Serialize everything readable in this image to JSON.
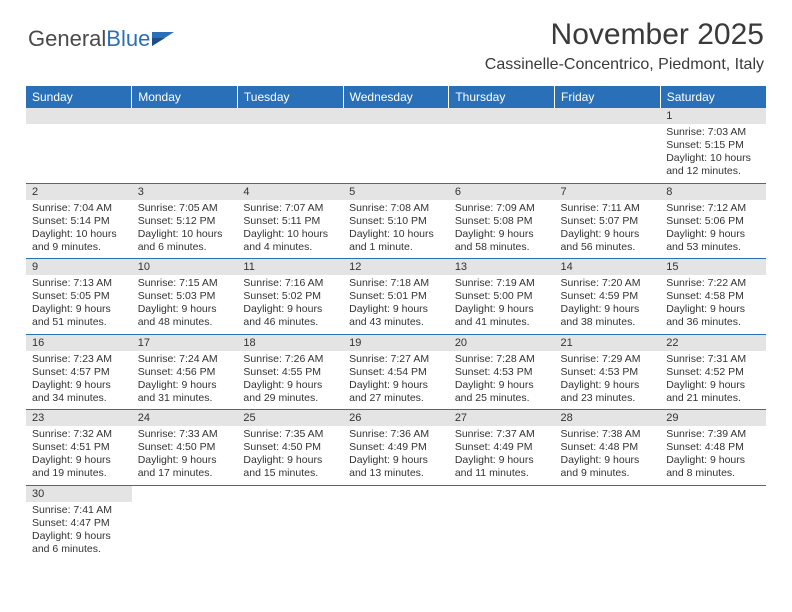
{
  "logo": {
    "text1": "General",
    "text2": "Blue"
  },
  "title": "November 2025",
  "location": "Cassinelle-Concentrico, Piedmont, Italy",
  "weekdays": [
    "Sunday",
    "Monday",
    "Tuesday",
    "Wednesday",
    "Thursday",
    "Friday",
    "Saturday"
  ],
  "colors": {
    "header_bg": "#2a70b8",
    "daynum_bg": "#e4e4e4",
    "border": "#2a70b8"
  },
  "weeks": [
    {
      "days": [
        {
          "n": "",
          "sr": "",
          "ss": "",
          "dl": ""
        },
        {
          "n": "",
          "sr": "",
          "ss": "",
          "dl": ""
        },
        {
          "n": "",
          "sr": "",
          "ss": "",
          "dl": ""
        },
        {
          "n": "",
          "sr": "",
          "ss": "",
          "dl": ""
        },
        {
          "n": "",
          "sr": "",
          "ss": "",
          "dl": ""
        },
        {
          "n": "",
          "sr": "",
          "ss": "",
          "dl": ""
        },
        {
          "n": "1",
          "sr": "Sunrise: 7:03 AM",
          "ss": "Sunset: 5:15 PM",
          "dl": "Daylight: 10 hours and 12 minutes."
        }
      ]
    },
    {
      "days": [
        {
          "n": "2",
          "sr": "Sunrise: 7:04 AM",
          "ss": "Sunset: 5:14 PM",
          "dl": "Daylight: 10 hours and 9 minutes."
        },
        {
          "n": "3",
          "sr": "Sunrise: 7:05 AM",
          "ss": "Sunset: 5:12 PM",
          "dl": "Daylight: 10 hours and 6 minutes."
        },
        {
          "n": "4",
          "sr": "Sunrise: 7:07 AM",
          "ss": "Sunset: 5:11 PM",
          "dl": "Daylight: 10 hours and 4 minutes."
        },
        {
          "n": "5",
          "sr": "Sunrise: 7:08 AM",
          "ss": "Sunset: 5:10 PM",
          "dl": "Daylight: 10 hours and 1 minute."
        },
        {
          "n": "6",
          "sr": "Sunrise: 7:09 AM",
          "ss": "Sunset: 5:08 PM",
          "dl": "Daylight: 9 hours and 58 minutes."
        },
        {
          "n": "7",
          "sr": "Sunrise: 7:11 AM",
          "ss": "Sunset: 5:07 PM",
          "dl": "Daylight: 9 hours and 56 minutes."
        },
        {
          "n": "8",
          "sr": "Sunrise: 7:12 AM",
          "ss": "Sunset: 5:06 PM",
          "dl": "Daylight: 9 hours and 53 minutes."
        }
      ]
    },
    {
      "days": [
        {
          "n": "9",
          "sr": "Sunrise: 7:13 AM",
          "ss": "Sunset: 5:05 PM",
          "dl": "Daylight: 9 hours and 51 minutes."
        },
        {
          "n": "10",
          "sr": "Sunrise: 7:15 AM",
          "ss": "Sunset: 5:03 PM",
          "dl": "Daylight: 9 hours and 48 minutes."
        },
        {
          "n": "11",
          "sr": "Sunrise: 7:16 AM",
          "ss": "Sunset: 5:02 PM",
          "dl": "Daylight: 9 hours and 46 minutes."
        },
        {
          "n": "12",
          "sr": "Sunrise: 7:18 AM",
          "ss": "Sunset: 5:01 PM",
          "dl": "Daylight: 9 hours and 43 minutes."
        },
        {
          "n": "13",
          "sr": "Sunrise: 7:19 AM",
          "ss": "Sunset: 5:00 PM",
          "dl": "Daylight: 9 hours and 41 minutes."
        },
        {
          "n": "14",
          "sr": "Sunrise: 7:20 AM",
          "ss": "Sunset: 4:59 PM",
          "dl": "Daylight: 9 hours and 38 minutes."
        },
        {
          "n": "15",
          "sr": "Sunrise: 7:22 AM",
          "ss": "Sunset: 4:58 PM",
          "dl": "Daylight: 9 hours and 36 minutes."
        }
      ]
    },
    {
      "days": [
        {
          "n": "16",
          "sr": "Sunrise: 7:23 AM",
          "ss": "Sunset: 4:57 PM",
          "dl": "Daylight: 9 hours and 34 minutes."
        },
        {
          "n": "17",
          "sr": "Sunrise: 7:24 AM",
          "ss": "Sunset: 4:56 PM",
          "dl": "Daylight: 9 hours and 31 minutes."
        },
        {
          "n": "18",
          "sr": "Sunrise: 7:26 AM",
          "ss": "Sunset: 4:55 PM",
          "dl": "Daylight: 9 hours and 29 minutes."
        },
        {
          "n": "19",
          "sr": "Sunrise: 7:27 AM",
          "ss": "Sunset: 4:54 PM",
          "dl": "Daylight: 9 hours and 27 minutes."
        },
        {
          "n": "20",
          "sr": "Sunrise: 7:28 AM",
          "ss": "Sunset: 4:53 PM",
          "dl": "Daylight: 9 hours and 25 minutes."
        },
        {
          "n": "21",
          "sr": "Sunrise: 7:29 AM",
          "ss": "Sunset: 4:53 PM",
          "dl": "Daylight: 9 hours and 23 minutes."
        },
        {
          "n": "22",
          "sr": "Sunrise: 7:31 AM",
          "ss": "Sunset: 4:52 PM",
          "dl": "Daylight: 9 hours and 21 minutes."
        }
      ]
    },
    {
      "days": [
        {
          "n": "23",
          "sr": "Sunrise: 7:32 AM",
          "ss": "Sunset: 4:51 PM",
          "dl": "Daylight: 9 hours and 19 minutes."
        },
        {
          "n": "24",
          "sr": "Sunrise: 7:33 AM",
          "ss": "Sunset: 4:50 PM",
          "dl": "Daylight: 9 hours and 17 minutes."
        },
        {
          "n": "25",
          "sr": "Sunrise: 7:35 AM",
          "ss": "Sunset: 4:50 PM",
          "dl": "Daylight: 9 hours and 15 minutes."
        },
        {
          "n": "26",
          "sr": "Sunrise: 7:36 AM",
          "ss": "Sunset: 4:49 PM",
          "dl": "Daylight: 9 hours and 13 minutes."
        },
        {
          "n": "27",
          "sr": "Sunrise: 7:37 AM",
          "ss": "Sunset: 4:49 PM",
          "dl": "Daylight: 9 hours and 11 minutes."
        },
        {
          "n": "28",
          "sr": "Sunrise: 7:38 AM",
          "ss": "Sunset: 4:48 PM",
          "dl": "Daylight: 9 hours and 9 minutes."
        },
        {
          "n": "29",
          "sr": "Sunrise: 7:39 AM",
          "ss": "Sunset: 4:48 PM",
          "dl": "Daylight: 9 hours and 8 minutes."
        }
      ]
    },
    {
      "days": [
        {
          "n": "30",
          "sr": "Sunrise: 7:41 AM",
          "ss": "Sunset: 4:47 PM",
          "dl": "Daylight: 9 hours and 6 minutes."
        },
        {
          "n": "",
          "sr": "",
          "ss": "",
          "dl": ""
        },
        {
          "n": "",
          "sr": "",
          "ss": "",
          "dl": ""
        },
        {
          "n": "",
          "sr": "",
          "ss": "",
          "dl": ""
        },
        {
          "n": "",
          "sr": "",
          "ss": "",
          "dl": ""
        },
        {
          "n": "",
          "sr": "",
          "ss": "",
          "dl": ""
        },
        {
          "n": "",
          "sr": "",
          "ss": "",
          "dl": ""
        }
      ]
    }
  ]
}
